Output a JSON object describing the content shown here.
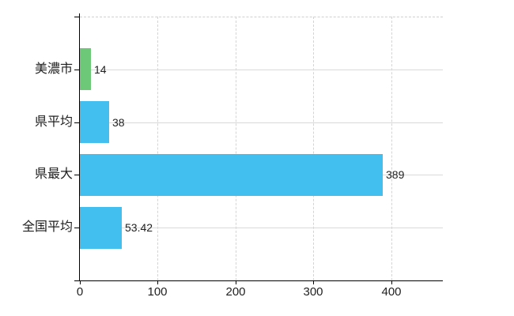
{
  "chart_data": {
    "type": "bar",
    "orientation": "horizontal",
    "title": "",
    "xlabel": "",
    "ylabel": "",
    "categories": [
      "美濃市",
      "県平均",
      "県最大",
      "全国平均"
    ],
    "values": [
      14,
      38,
      389,
      53.42
    ],
    "value_labels": [
      "14",
      "38",
      "389",
      "53.42"
    ],
    "bar_colors": [
      "#6dc877",
      "#42bfee",
      "#42bfee",
      "#42bfee"
    ],
    "x_ticks": [
      "0",
      "100",
      "200",
      "300",
      "400"
    ],
    "x_tick_values": [
      0,
      100,
      200,
      300,
      400
    ],
    "xlim": [
      0,
      466
    ],
    "grid": true,
    "legend": "none",
    "colors": {
      "axis": "#000000",
      "horizontal_grid": "#d9d9d9",
      "vertical_grid": "#d4d4d4",
      "text": "#1f1f1f",
      "background": "#ffffff"
    }
  }
}
